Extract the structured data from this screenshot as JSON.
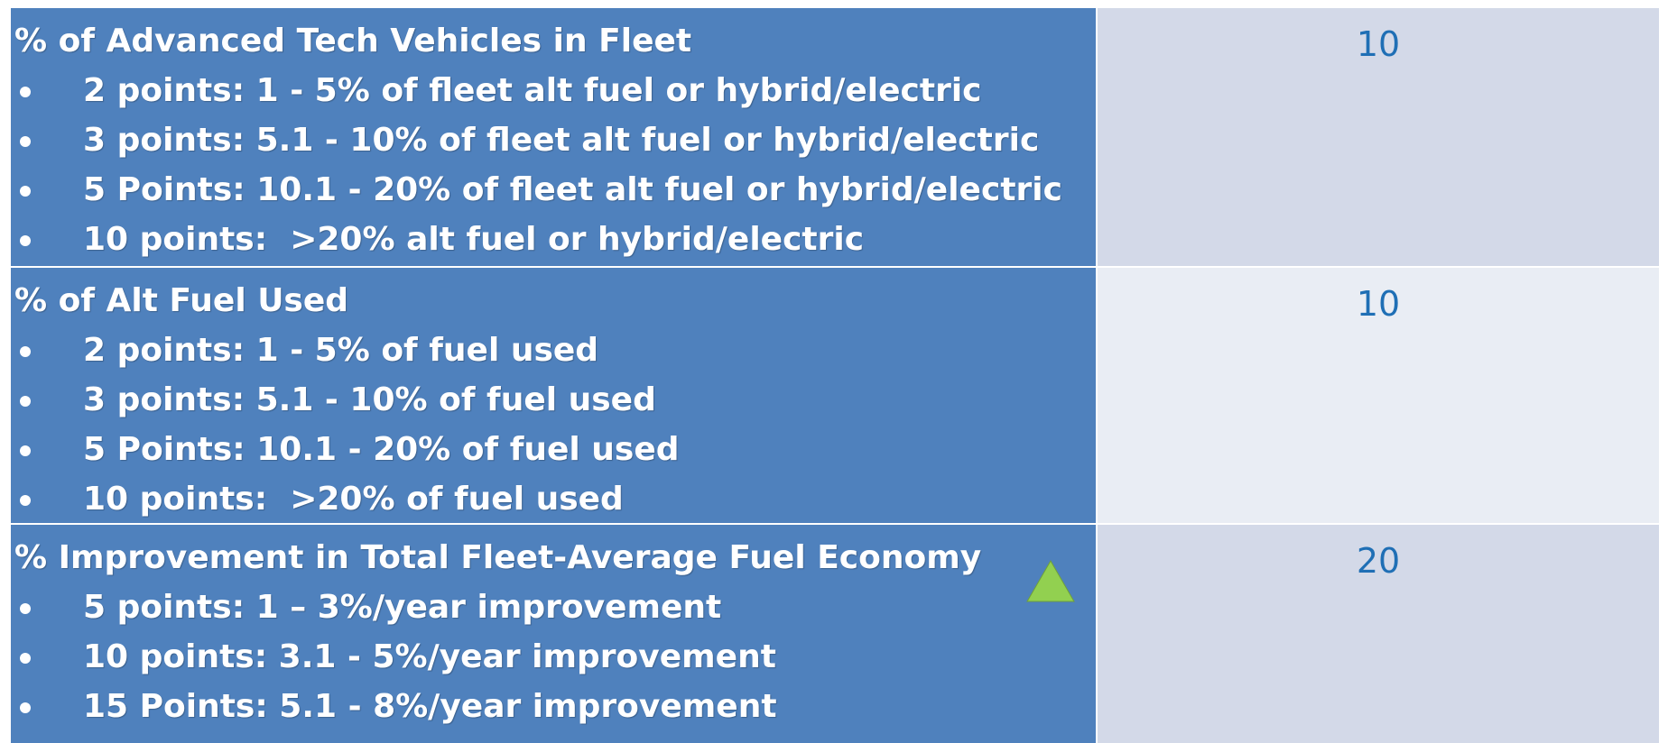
{
  "table": {
    "rows": [
      {
        "title": "% of Advanced Tech Vehicles in Fleet",
        "bullets": [
          "2 points: 1 - 5% of fleet alt fuel or hybrid/electric",
          "3 points: 5.1 - 10% of fleet alt fuel or hybrid/electric",
          "5 Points: 10.1 - 20% of fleet alt fuel or hybrid/electric",
          "10 points:  >20% alt fuel or hybrid/electric"
        ],
        "points": 10
      },
      {
        "title": "% of Alt Fuel Used",
        "bullets": [
          "2 points: 1 - 5% of fuel used",
          "3 points: 5.1 - 10% of fuel used",
          "5 Points: 10.1 - 20% of fuel used",
          "10 points:  >20% of fuel used"
        ],
        "points": 10
      },
      {
        "title": "% Improvement in Total Fleet-Average Fuel Economy",
        "bullets": [
          "5 points: 1 – 3%/year improvement",
          "10 points: 3.1 - 5%/year improvement",
          "15 Points: 5.1 - 8%/year improvement"
        ],
        "points": 20
      }
    ]
  }
}
